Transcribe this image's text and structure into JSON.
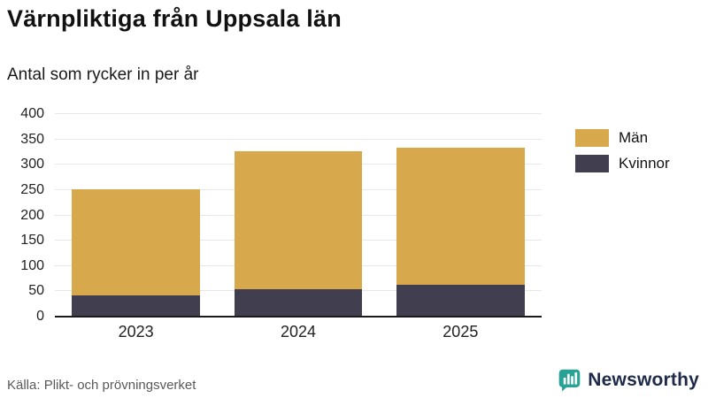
{
  "title": "Värnpliktiga från Uppsala län",
  "subtitle": "Antal som rycker in per år",
  "source": "Källa: Plikt- och prövningsverket",
  "branding": {
    "name": "Newsworthy",
    "icon": "bar-chart-speech-bubble-icon",
    "icon_color": "#28a294",
    "text_color": "#1d2a49"
  },
  "colors": {
    "men": "#d8a84d",
    "women": "#413e50",
    "grid": "#e7e7e7",
    "axis": "#1a1a1a"
  },
  "chart_data": {
    "type": "bar",
    "stacked": true,
    "title": "Värnpliktiga från Uppsala län",
    "subtitle": "Antal som rycker in per år",
    "categories": [
      "2023",
      "2024",
      "2025"
    ],
    "series": [
      {
        "name": "Kvinnor",
        "color": "#413e50",
        "values": [
          42,
          54,
          63
        ]
      },
      {
        "name": "Män",
        "color": "#d8a84d",
        "values": [
          210,
          272,
          270
        ]
      }
    ],
    "totals": [
      252,
      326,
      333
    ],
    "xlabel": "",
    "ylabel": "",
    "ylim": [
      0,
      400
    ],
    "yticks": [
      0,
      50,
      100,
      150,
      200,
      250,
      300,
      350,
      400
    ],
    "grid": true,
    "legend": [
      "Män",
      "Kvinnor"
    ],
    "legend_position": "right"
  }
}
